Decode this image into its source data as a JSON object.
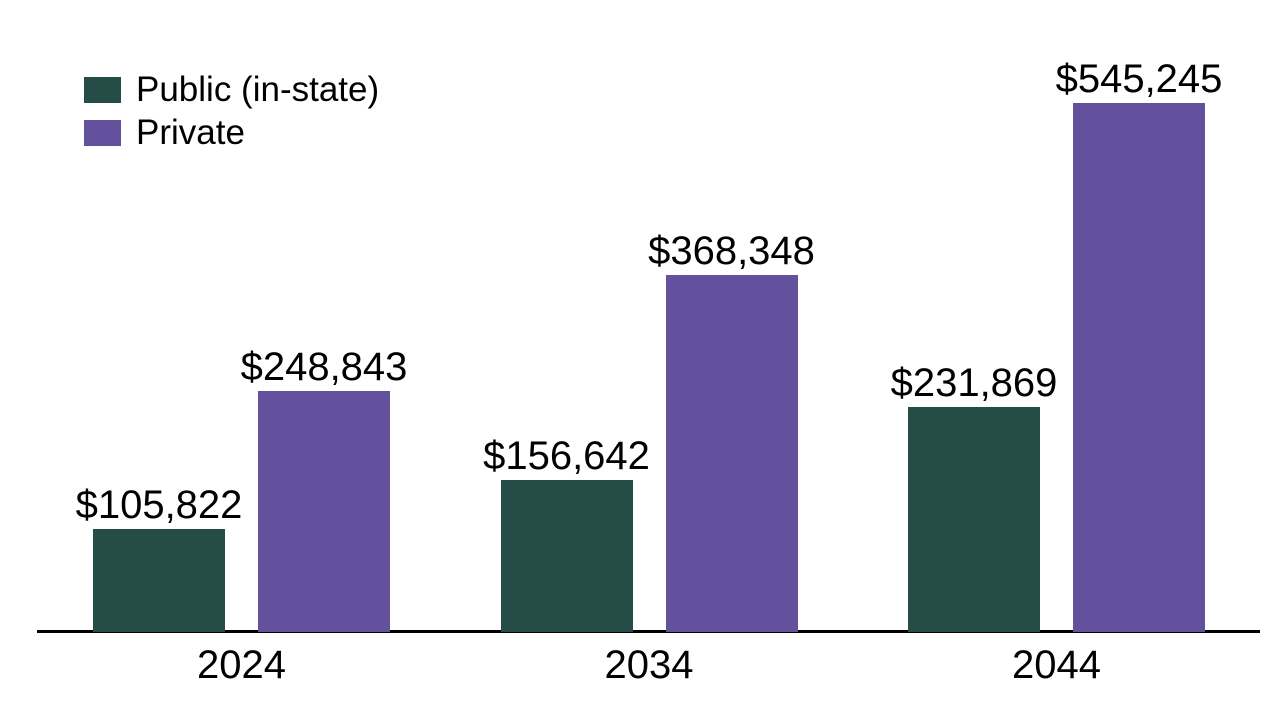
{
  "chart_data": {
    "type": "bar",
    "title": "",
    "categories": [
      "2024",
      "2034",
      "2044"
    ],
    "series": [
      {
        "name": "Public (in-state)",
        "key": "public-in-state",
        "color": "#254c47",
        "values": [
          105822,
          156642,
          231869
        ],
        "value_labels": [
          "$105,822",
          "$156,642",
          "$231,869"
        ]
      },
      {
        "name": "Private",
        "key": "private",
        "color": "#63519e",
        "values": [
          248843,
          368348,
          545245
        ],
        "value_labels": [
          "$248,843",
          "$368,348",
          "$545,245"
        ]
      }
    ],
    "xlabel": "",
    "ylabel": "",
    "ylim": [
      0,
      545245
    ],
    "grid": false,
    "legend_position": "top-left",
    "axis_color": "#000000",
    "label_color": "#000000",
    "background_color": "#ffffff"
  }
}
